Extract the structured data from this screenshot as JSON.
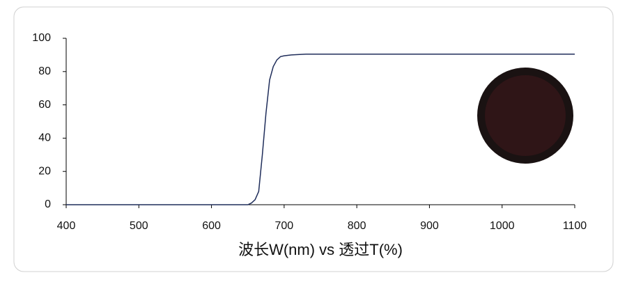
{
  "chart_data": {
    "type": "line",
    "xlabel": "波长W(nm) vs 透过T(%)",
    "x": [
      400,
      650,
      655,
      660,
      665,
      670,
      675,
      680,
      685,
      690,
      695,
      700,
      710,
      730,
      1100
    ],
    "series": [
      {
        "color": "#1f2d5a",
        "values": [
          0,
          0,
          1,
          3,
          8,
          30,
          55,
          75,
          83,
          87,
          89,
          89.5,
          90,
          90.5,
          90.5
        ]
      }
    ],
    "xlim": [
      400,
      1100
    ],
    "xticks": [
      400,
      500,
      600,
      700,
      800,
      900,
      1000,
      1100
    ],
    "ylim": [
      0,
      100
    ],
    "yticks": [
      0,
      20,
      40,
      60,
      80,
      100
    ],
    "grid": false
  }
}
